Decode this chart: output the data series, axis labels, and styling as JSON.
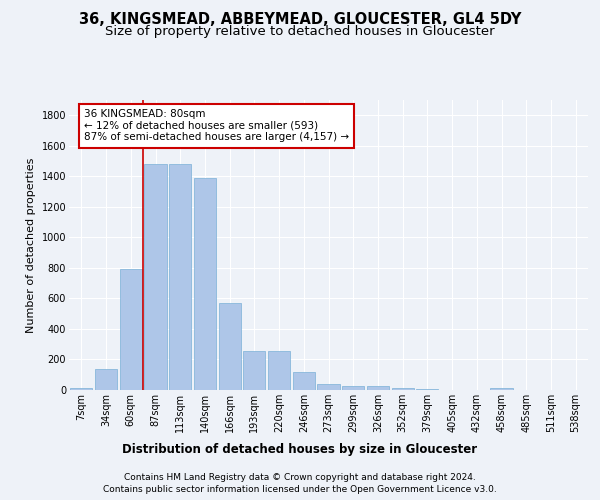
{
  "title1": "36, KINGSMEAD, ABBEYMEAD, GLOUCESTER, GL4 5DY",
  "title2": "Size of property relative to detached houses in Gloucester",
  "xlabel": "Distribution of detached houses by size in Gloucester",
  "ylabel": "Number of detached properties",
  "categories": [
    "7sqm",
    "34sqm",
    "60sqm",
    "87sqm",
    "113sqm",
    "140sqm",
    "166sqm",
    "193sqm",
    "220sqm",
    "246sqm",
    "273sqm",
    "299sqm",
    "326sqm",
    "352sqm",
    "379sqm",
    "405sqm",
    "432sqm",
    "458sqm",
    "485sqm",
    "511sqm",
    "538sqm"
  ],
  "values": [
    10,
    135,
    790,
    1480,
    1480,
    1390,
    570,
    255,
    255,
    120,
    37,
    28,
    28,
    10,
    5,
    0,
    0,
    15,
    0,
    0,
    0
  ],
  "bar_color": "#aec6e8",
  "bar_edge_color": "#7ab0d8",
  "annotation_text": "36 KINGSMEAD: 80sqm\n← 12% of detached houses are smaller (593)\n87% of semi-detached houses are larger (4,157) →",
  "annotation_box_color": "#ffffff",
  "annotation_box_edge_color": "#cc0000",
  "vline_color": "#cc0000",
  "footer1": "Contains HM Land Registry data © Crown copyright and database right 2024.",
  "footer2": "Contains public sector information licensed under the Open Government Licence v3.0.",
  "background_color": "#eef2f8",
  "axes_background": "#eef2f8",
  "grid_color": "#ffffff",
  "ylim": [
    0,
    1900
  ],
  "yticks": [
    0,
    200,
    400,
    600,
    800,
    1000,
    1200,
    1400,
    1600,
    1800
  ],
  "title1_fontsize": 10.5,
  "title2_fontsize": 9.5,
  "xlabel_fontsize": 8.5,
  "ylabel_fontsize": 8,
  "tick_fontsize": 7,
  "footer_fontsize": 6.5,
  "vline_x": 2.5
}
